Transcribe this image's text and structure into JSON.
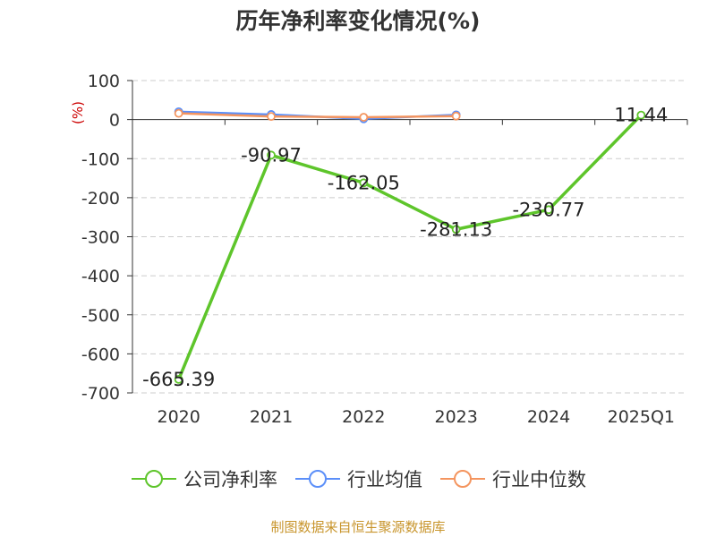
{
  "chart_data": {
    "type": "line",
    "title": "历年净利率变化情况(%)",
    "unit": "(%)",
    "categories": [
      "2020",
      "2021",
      "2022",
      "2023",
      "2024",
      "2025Q1"
    ],
    "ylim": [
      -700,
      100
    ],
    "yticks": [
      100,
      0,
      -100,
      -200,
      -300,
      -400,
      -500,
      -600,
      -700
    ],
    "grid": true,
    "legend_position": "bottom",
    "series": [
      {
        "name": "公司净利率",
        "color": "#5ec52b",
        "values": [
          -665.39,
          -90.97,
          -162.05,
          -281.13,
          -230.77,
          11.44
        ],
        "labels": [
          "-665.39",
          "-90.97",
          "-162.05",
          "-281.13",
          "-230.77",
          "11.44"
        ]
      },
      {
        "name": "行业均值",
        "color": "#5b8ff9",
        "values": [
          20,
          13,
          2,
          12,
          null,
          null
        ]
      },
      {
        "name": "行业中位数",
        "color": "#f4955f",
        "values": [
          16,
          8,
          6,
          9,
          null,
          null
        ]
      }
    ]
  },
  "footer": {
    "source": "制图数据来自恒生聚源数据库"
  }
}
